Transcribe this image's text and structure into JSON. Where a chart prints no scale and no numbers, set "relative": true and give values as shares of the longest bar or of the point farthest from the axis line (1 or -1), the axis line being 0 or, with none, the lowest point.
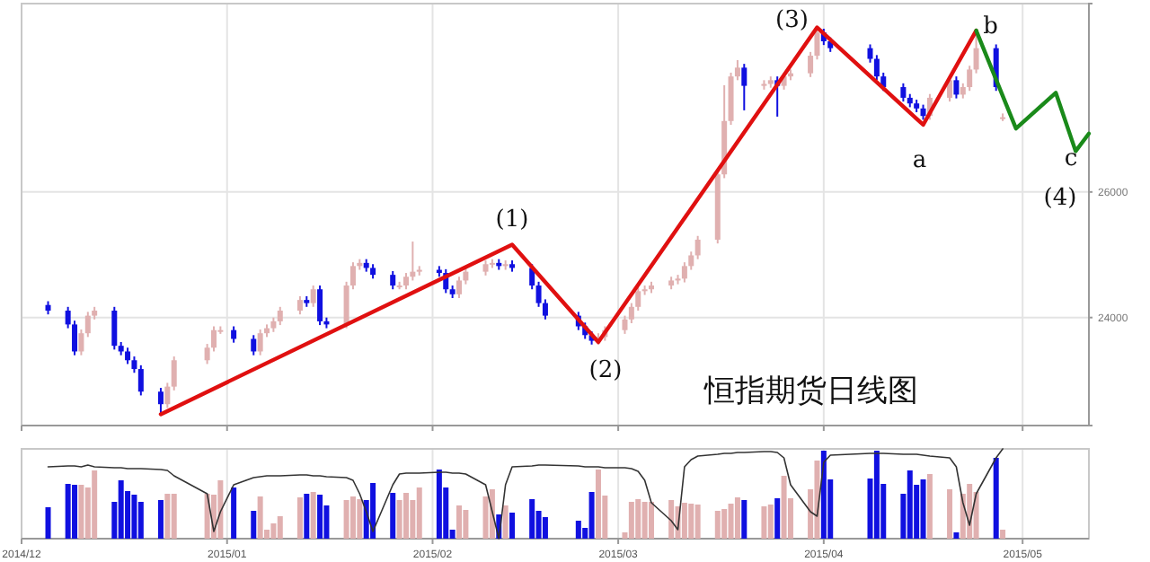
{
  "chart_data": [
    {
      "type": "candlestick",
      "xlim": [
        "2014-12-01",
        "2015-05-11"
      ],
      "ylim": [
        22280,
        29000
      ],
      "yticks": [
        24000,
        26000
      ],
      "xticks": [
        "2014-12-01",
        "2015-01-01",
        "2015-02-01",
        "2015-03-01",
        "2015-04-01",
        "2015-05-01"
      ],
      "tick_labels": "y",
      "grid": true,
      "x": [
        "2014-12-05",
        "2014-12-08",
        "2014-12-09",
        "2014-12-10",
        "2014-12-11",
        "2014-12-12",
        "2014-12-15",
        "2014-12-16",
        "2014-12-17",
        "2014-12-18",
        "2014-12-19",
        "2014-12-22",
        "2014-12-23",
        "2014-12-24",
        "2014-12-29",
        "2014-12-30",
        "2014-12-31",
        "2015-01-02",
        "2015-01-05",
        "2015-01-06",
        "2015-01-07",
        "2015-01-08",
        "2015-01-09",
        "2015-01-12",
        "2015-01-13",
        "2015-01-14",
        "2015-01-15",
        "2015-01-16",
        "2015-01-19",
        "2015-01-20",
        "2015-01-21",
        "2015-01-22",
        "2015-01-23",
        "2015-01-26",
        "2015-01-27",
        "2015-01-28",
        "2015-01-29",
        "2015-01-30",
        "2015-02-02",
        "2015-02-03",
        "2015-02-04",
        "2015-02-05",
        "2015-02-06",
        "2015-02-09",
        "2015-02-10",
        "2015-02-11",
        "2015-02-12",
        "2015-02-13",
        "2015-02-16",
        "2015-02-17",
        "2015-02-18",
        "2015-02-23",
        "2015-02-24",
        "2015-02-25",
        "2015-02-26",
        "2015-02-27",
        "2015-03-02",
        "2015-03-03",
        "2015-03-04",
        "2015-03-05",
        "2015-03-06",
        "2015-03-09",
        "2015-03-10",
        "2015-03-11",
        "2015-03-12",
        "2015-03-13",
        "2015-03-16",
        "2015-03-17",
        "2015-03-18",
        "2015-03-19",
        "2015-03-20",
        "2015-03-23",
        "2015-03-24",
        "2015-03-25",
        "2015-03-26",
        "2015-03-27",
        "2015-03-30",
        "2015-03-31",
        "2015-04-01",
        "2015-04-02",
        "2015-04-08",
        "2015-04-09",
        "2015-04-10",
        "2015-04-13",
        "2015-04-14",
        "2015-04-15",
        "2015-04-16",
        "2015-04-17",
        "2015-04-20",
        "2015-04-21",
        "2015-04-22",
        "2015-04-23",
        "2015-04-24",
        "2015-04-27",
        "2015-04-28"
      ],
      "ohlc": [
        [
          24200,
          24260,
          24050,
          24110
        ],
        [
          24110,
          24170,
          23830,
          23890
        ],
        [
          23890,
          23950,
          23400,
          23460
        ],
        [
          23460,
          23810,
          23400,
          23750
        ],
        [
          23750,
          24090,
          23690,
          24030
        ],
        [
          24030,
          24170,
          23970,
          24110
        ],
        [
          24110,
          24170,
          23490,
          23550
        ],
        [
          23550,
          23610,
          23400,
          23460
        ],
        [
          23460,
          23520,
          23260,
          23320
        ],
        [
          23320,
          23380,
          23120,
          23180
        ],
        [
          23180,
          23240,
          22760,
          22820
        ],
        [
          22820,
          22880,
          22460,
          22620
        ],
        [
          22620,
          22960,
          22560,
          22900
        ],
        [
          22900,
          23380,
          22840,
          23320
        ],
        [
          23320,
          23580,
          23260,
          23520
        ],
        [
          23520,
          23860,
          23460,
          23800
        ],
        [
          23800,
          23860,
          23740,
          23800
        ],
        [
          23800,
          23860,
          23600,
          23660
        ],
        [
          23660,
          23720,
          23400,
          23460
        ],
        [
          23460,
          23810,
          23400,
          23750
        ],
        [
          23750,
          23890,
          23690,
          23830
        ],
        [
          23830,
          24000,
          23770,
          23940
        ],
        [
          23940,
          24170,
          23880,
          24110
        ],
        [
          24110,
          24340,
          24050,
          24280
        ],
        [
          24280,
          24340,
          24170,
          24230
        ],
        [
          24230,
          24510,
          24170,
          24450
        ],
        [
          24450,
          24510,
          23880,
          23940
        ],
        [
          23940,
          24000,
          23830,
          23890
        ],
        [
          23890,
          24570,
          23830,
          24510
        ],
        [
          24510,
          24880,
          24450,
          24820
        ],
        [
          24820,
          24930,
          24760,
          24870
        ],
        [
          24870,
          24930,
          24730,
          24790
        ],
        [
          24790,
          24850,
          24620,
          24680
        ],
        [
          24680,
          24740,
          24450,
          24510
        ],
        [
          24510,
          24570,
          24450,
          24510
        ],
        [
          24510,
          24710,
          24450,
          24650
        ],
        [
          24650,
          25210,
          24590,
          24730
        ],
        [
          24730,
          24820,
          24670,
          24760
        ],
        [
          24760,
          24820,
          24650,
          24710
        ],
        [
          24710,
          24770,
          24390,
          24450
        ],
        [
          24450,
          24510,
          24310,
          24370
        ],
        [
          24370,
          24650,
          24310,
          24590
        ],
        [
          24590,
          24790,
          24530,
          24730
        ],
        [
          24730,
          24910,
          24670,
          24850
        ],
        [
          24850,
          24930,
          24790,
          24870
        ],
        [
          24870,
          24930,
          24760,
          24820
        ],
        [
          24820,
          24910,
          24760,
          24850
        ],
        [
          24850,
          24910,
          24730,
          24790
        ],
        [
          24790,
          24850,
          24450,
          24510
        ],
        [
          24510,
          24570,
          24170,
          24230
        ],
        [
          24230,
          24290,
          23970,
          24030
        ],
        [
          24030,
          24090,
          23800,
          23860
        ],
        [
          23860,
          23920,
          23660,
          23720
        ],
        [
          23720,
          23780,
          23570,
          23630
        ],
        [
          23630,
          23750,
          23570,
          23690
        ],
        [
          23690,
          23860,
          23630,
          23800
        ],
        [
          23800,
          24030,
          23740,
          23970
        ],
        [
          23970,
          24230,
          23910,
          24170
        ],
        [
          24170,
          24480,
          24110,
          24420
        ],
        [
          24420,
          24510,
          24360,
          24450
        ],
        [
          24450,
          24570,
          24390,
          24510
        ],
        [
          24510,
          24650,
          24450,
          24590
        ],
        [
          24590,
          24680,
          24530,
          24620
        ],
        [
          24620,
          24880,
          24560,
          24820
        ],
        [
          24820,
          25050,
          24760,
          24990
        ],
        [
          24990,
          25300,
          24930,
          25240
        ],
        [
          25240,
          26340,
          25180,
          26280
        ],
        [
          26280,
          27700,
          26220,
          27130
        ],
        [
          27130,
          27900,
          27070,
          27840
        ],
        [
          27840,
          28100,
          27780,
          27980
        ],
        [
          27980,
          28040,
          27300,
          27690
        ],
        [
          27690,
          27780,
          27630,
          27720
        ],
        [
          27720,
          27840,
          27660,
          27780
        ],
        [
          27780,
          27840,
          27200,
          27690
        ],
        [
          27690,
          27900,
          27630,
          27840
        ],
        [
          27840,
          27950,
          27780,
          27890
        ],
        [
          27890,
          28230,
          27830,
          28170
        ],
        [
          28170,
          28600,
          28110,
          28540
        ],
        [
          28540,
          28600,
          28340,
          28400
        ],
        [
          28400,
          28460,
          28230,
          28290
        ],
        [
          28290,
          28350,
          28060,
          28120
        ],
        [
          28120,
          28180,
          27780,
          27840
        ],
        [
          27840,
          27900,
          27610,
          27670
        ],
        [
          27670,
          27730,
          27440,
          27500
        ],
        [
          27500,
          27560,
          27350,
          27410
        ],
        [
          27410,
          27470,
          27270,
          27330
        ],
        [
          27330,
          27390,
          27150,
          27210
        ],
        [
          27210,
          27560,
          27150,
          27500
        ],
        [
          27500,
          27840,
          27440,
          27780
        ],
        [
          27780,
          27840,
          27490,
          27550
        ],
        [
          27550,
          27730,
          27490,
          27670
        ],
        [
          27670,
          28010,
          27610,
          27950
        ],
        [
          27950,
          28570,
          27890,
          28290
        ],
        [
          28290,
          28350,
          27610,
          27670
        ],
        [
          27190,
          27250,
          27130,
          27190
        ]
      ],
      "colors": [
        "#1010e0",
        "#1010e0",
        "#1010e0",
        "#e0b0b0",
        "#e0b0b0",
        "#e0b0b0",
        "#1010e0",
        "#1010e0",
        "#1010e0",
        "#1010e0",
        "#1010e0",
        "#1010e0",
        "#e0b0b0",
        "#e0b0b0",
        "#e0b0b0",
        "#e0b0b0",
        "#e0b0b0",
        "#1010e0",
        "#1010e0",
        "#e0b0b0",
        "#e0b0b0",
        "#e0b0b0",
        "#e0b0b0",
        "#e0b0b0",
        "#1010e0",
        "#e0b0b0",
        "#1010e0",
        "#1010e0",
        "#e0b0b0",
        "#e0b0b0",
        "#e0b0b0",
        "#1010e0",
        "#1010e0",
        "#1010e0",
        "#e0b0b0",
        "#e0b0b0",
        "#e0b0b0",
        "#e0b0b0",
        "#1010e0",
        "#1010e0",
        "#1010e0",
        "#e0b0b0",
        "#e0b0b0",
        "#e0b0b0",
        "#e0b0b0",
        "#1010e0",
        "#e0b0b0",
        "#1010e0",
        "#1010e0",
        "#1010e0",
        "#1010e0",
        "#1010e0",
        "#1010e0",
        "#1010e0",
        "#e0b0b0",
        "#e0b0b0",
        "#e0b0b0",
        "#e0b0b0",
        "#e0b0b0",
        "#e0b0b0",
        "#e0b0b0",
        "#e0b0b0",
        "#e0b0b0",
        "#e0b0b0",
        "#e0b0b0",
        "#e0b0b0",
        "#e0b0b0",
        "#e0b0b0",
        "#e0b0b0",
        "#e0b0b0",
        "#1010e0",
        "#e0b0b0",
        "#e0b0b0",
        "#1010e0",
        "#e0b0b0",
        "#e0b0b0",
        "#e0b0b0",
        "#e0b0b0",
        "#1010e0",
        "#1010e0",
        "#1010e0",
        "#1010e0",
        "#1010e0",
        "#1010e0",
        "#1010e0",
        "#1010e0",
        "#1010e0",
        "#e0b0b0",
        "#e0b0b0",
        "#1010e0",
        "#e0b0b0",
        "#e0b0b0",
        "#e0b0b0",
        "#1010e0",
        "#e0b0b0"
      ],
      "series": [
        {
          "type": "line",
          "color": "#e01010",
          "x": [
            "2014-12-22",
            "2015-02-13",
            "2015-02-26",
            "2015-03-31",
            "2015-04-16",
            "2015-04-24"
          ],
          "values": [
            22460,
            25160,
            23610,
            28620,
            27070,
            28570
          ]
        },
        {
          "type": "line",
          "color": "#1a8a1a",
          "x": [
            "2015-04-24",
            "2015-04-30",
            "2015-05-06",
            "2015-05-09",
            "2015-05-11"
          ],
          "values": [
            28570,
            27010,
            27580,
            26650,
            26930
          ]
        }
      ],
      "annotations": [
        "(1)",
        "(2)",
        "(3)",
        "a",
        "b",
        "c",
        "(4)",
        "恒指期货日线图"
      ]
    },
    {
      "type": "bar",
      "relative": true,
      "grid": "x",
      "xlim": [
        "2014-12-01",
        "2015-05-11"
      ],
      "xticks": [
        {
          "value": "2014-12-01",
          "label": "2014/12"
        },
        {
          "value": "2015-01-01",
          "label": "2015/01"
        },
        {
          "value": "2015-02-01",
          "label": "2015/02"
        },
        {
          "value": "2015-03-01",
          "label": "2015/03"
        },
        {
          "value": "2015-04-01",
          "label": "2015/04"
        },
        {
          "value": "2015-05-01",
          "label": "2015/05"
        }
      ],
      "x": [
        "2014-12-05",
        "2014-12-08",
        "2014-12-09",
        "2014-12-10",
        "2014-12-11",
        "2014-12-12",
        "2014-12-15",
        "2014-12-16",
        "2014-12-17",
        "2014-12-18",
        "2014-12-19",
        "2014-12-22",
        "2014-12-23",
        "2014-12-24",
        "2014-12-29",
        "2014-12-30",
        "2014-12-31",
        "2015-01-02",
        "2015-01-05",
        "2015-01-06",
        "2015-01-07",
        "2015-01-08",
        "2015-01-09",
        "2015-01-12",
        "2015-01-13",
        "2015-01-14",
        "2015-01-15",
        "2015-01-16",
        "2015-01-19",
        "2015-01-20",
        "2015-01-21",
        "2015-01-22",
        "2015-01-23",
        "2015-01-26",
        "2015-01-27",
        "2015-01-28",
        "2015-01-29",
        "2015-01-30",
        "2015-02-02",
        "2015-02-03",
        "2015-02-04",
        "2015-02-05",
        "2015-02-06",
        "2015-02-09",
        "2015-02-10",
        "2015-02-11",
        "2015-02-12",
        "2015-02-13",
        "2015-02-16",
        "2015-02-17",
        "2015-02-18",
        "2015-02-23",
        "2015-02-24",
        "2015-02-25",
        "2015-02-26",
        "2015-02-27",
        "2015-03-02",
        "2015-03-03",
        "2015-03-04",
        "2015-03-05",
        "2015-03-06",
        "2015-03-09",
        "2015-03-10",
        "2015-03-11",
        "2015-03-12",
        "2015-03-13",
        "2015-03-16",
        "2015-03-17",
        "2015-03-18",
        "2015-03-19",
        "2015-03-20",
        "2015-03-23",
        "2015-03-24",
        "2015-03-25",
        "2015-03-26",
        "2015-03-27",
        "2015-03-30",
        "2015-03-31",
        "2015-04-01",
        "2015-04-02",
        "2015-04-08",
        "2015-04-09",
        "2015-04-10",
        "2015-04-13",
        "2015-04-14",
        "2015-04-15",
        "2015-04-16",
        "2015-04-17",
        "2015-04-20",
        "2015-04-21",
        "2015-04-22",
        "2015-04-23",
        "2015-04-24",
        "2015-04-27",
        "2015-04-28"
      ],
      "series": [
        {
          "values": [
            0.35,
            0.61,
            0.6,
            0.6,
            0.57,
            0.76,
            0.41,
            0.65,
            0.53,
            0.49,
            0.41,
            0.43,
            0.5,
            0.5,
            0.5,
            0.49,
            0.65,
            0.57,
            0.31,
            0.47,
            0.1,
            0.17,
            0.25,
            0.46,
            0.5,
            0.52,
            0.49,
            0.37,
            0.43,
            0.47,
            0.44,
            0.43,
            0.62,
            0.51,
            0.43,
            0.51,
            0.43,
            0.57,
            0.77,
            0.57,
            0.1,
            0.37,
            0.32,
            0.47,
            0.55,
            0.27,
            0.37,
            0.29,
            0.44,
            0.31,
            0.24,
            0.2,
            0.12,
            0.52,
            0.77,
            0.48,
            0.07,
            0.41,
            0.44,
            0.41,
            0.41,
            0.43,
            0.36,
            0.4,
            0.39,
            0.38,
            0.31,
            0.33,
            0.39,
            0.46,
            0.43,
            0.36,
            0.38,
            0.45,
            0.7,
            0.45,
            0.55,
            0.87,
            0.98,
            0.66,
            0.67,
            0.98,
            0.61,
            0.5,
            0.76,
            0.6,
            0.66,
            0.72,
            0.55,
            0.07,
            0.5,
            0.61,
            0.52,
            0.9,
            0.1
          ],
          "colors": [
            "#1010e0",
            "#1010e0",
            "#1010e0",
            "#e0b0b0",
            "#e0b0b0",
            "#e0b0b0",
            "#1010e0",
            "#1010e0",
            "#1010e0",
            "#1010e0",
            "#1010e0",
            "#1010e0",
            "#e0b0b0",
            "#e0b0b0",
            "#e0b0b0",
            "#e0b0b0",
            "#e0b0b0",
            "#1010e0",
            "#1010e0",
            "#e0b0b0",
            "#e0b0b0",
            "#e0b0b0",
            "#e0b0b0",
            "#e0b0b0",
            "#1010e0",
            "#e0b0b0",
            "#1010e0",
            "#1010e0",
            "#e0b0b0",
            "#e0b0b0",
            "#e0b0b0",
            "#1010e0",
            "#1010e0",
            "#1010e0",
            "#e0b0b0",
            "#e0b0b0",
            "#e0b0b0",
            "#e0b0b0",
            "#1010e0",
            "#1010e0",
            "#1010e0",
            "#e0b0b0",
            "#e0b0b0",
            "#e0b0b0",
            "#e0b0b0",
            "#1010e0",
            "#e0b0b0",
            "#1010e0",
            "#1010e0",
            "#1010e0",
            "#1010e0",
            "#1010e0",
            "#1010e0",
            "#1010e0",
            "#e0b0b0",
            "#e0b0b0",
            "#e0b0b0",
            "#e0b0b0",
            "#e0b0b0",
            "#e0b0b0",
            "#e0b0b0",
            "#e0b0b0",
            "#e0b0b0",
            "#e0b0b0",
            "#e0b0b0",
            "#e0b0b0",
            "#e0b0b0",
            "#e0b0b0",
            "#e0b0b0",
            "#e0b0b0",
            "#1010e0",
            "#e0b0b0",
            "#e0b0b0",
            "#1010e0",
            "#e0b0b0",
            "#e0b0b0",
            "#e0b0b0",
            "#e0b0b0",
            "#1010e0",
            "#1010e0",
            "#1010e0",
            "#1010e0",
            "#1010e0",
            "#1010e0",
            "#1010e0",
            "#1010e0",
            "#1010e0",
            "#e0b0b0",
            "#e0b0b0",
            "#1010e0",
            "#e0b0b0",
            "#e0b0b0",
            "#e0b0b0",
            "#1010e0",
            "#e0b0b0"
          ]
        },
        {
          "type": "line",
          "color": "#333333",
          "values": [
            0.8,
            0.81,
            0.81,
            0.8,
            0.82,
            0.8,
            0.79,
            0.79,
            0.78,
            0.78,
            0.78,
            0.77,
            0.76,
            0.7,
            0.5,
            0.08,
            0.3,
            0.6,
            0.68,
            0.69,
            0.7,
            0.7,
            0.7,
            0.71,
            0.71,
            0.7,
            0.7,
            0.69,
            0.68,
            0.65,
            0.5,
            0.3,
            0.08,
            0.6,
            0.72,
            0.73,
            0.73,
            0.73,
            0.74,
            0.74,
            0.73,
            0.73,
            0.72,
            0.6,
            0.3,
            0.0,
            0.6,
            0.8,
            0.81,
            0.82,
            0.82,
            0.81,
            0.8,
            0.8,
            0.8,
            0.79,
            0.79,
            0.78,
            0.75,
            0.65,
            0.4,
            0.2,
            0.1,
            0.8,
            0.88,
            0.92,
            0.94,
            0.95,
            0.95,
            0.96,
            0.96,
            0.97,
            0.97,
            0.96,
            0.9,
            0.6,
            0.3,
            0.25,
            0.85,
            0.93,
            0.95,
            0.95,
            0.95,
            0.94,
            0.94,
            0.94,
            0.93,
            0.92,
            0.9,
            0.8,
            0.4,
            0.15,
            0.5,
            0.9,
            1.0
          ]
        }
      ]
    }
  ]
}
